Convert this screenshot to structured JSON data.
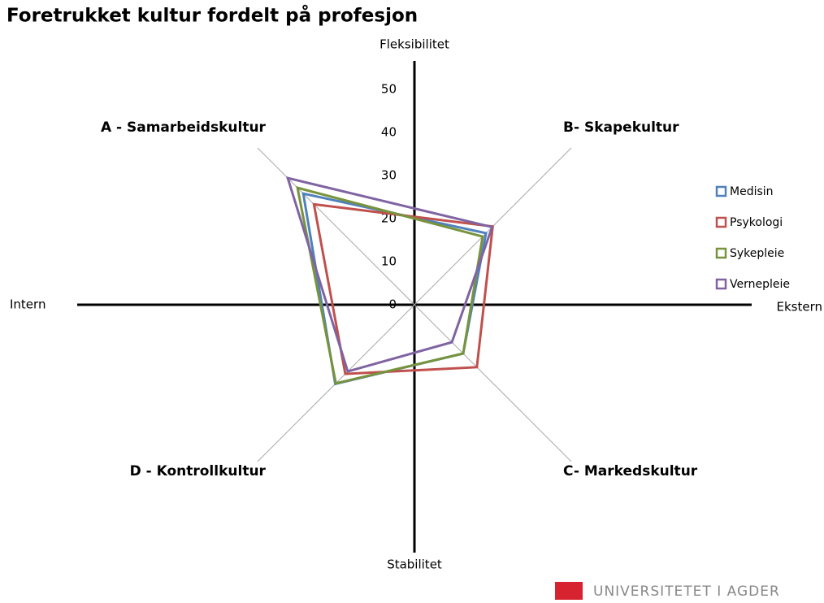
{
  "chart_data": {
    "type": "radar",
    "title": "Foretrukket kultur fordelt på profesjon",
    "categories": [
      "A - Samarbeidskultur",
      "B- Skapekultur",
      "C- Markedskultur",
      "D - Kontrollkultur"
    ],
    "series": [
      {
        "name": "Medisin",
        "color": "#4f81bd",
        "values": [
          36.5,
          23.5,
          16,
          26
        ]
      },
      {
        "name": "Psykologi",
        "color": "#c0504d",
        "values": [
          33,
          25.7,
          20.5,
          22.7
        ]
      },
      {
        "name": "Sykepleie",
        "color": "#77933c",
        "values": [
          38.4,
          22.4,
          16,
          25.8
        ]
      },
      {
        "name": "Vernepleie",
        "color": "#8064a2",
        "values": [
          41.6,
          25.5,
          12.3,
          21.9
        ]
      }
    ],
    "rlim": [
      0,
      50
    ],
    "rticks": [
      0,
      10,
      20,
      30,
      40,
      50
    ],
    "axis_labels": {
      "top": "Fleksibilitet",
      "bottom": "Stabilitet",
      "left": "Intern",
      "right": "Ekstern"
    },
    "legend": "right",
    "logo": "UNIVERSITETET I AGDER"
  }
}
